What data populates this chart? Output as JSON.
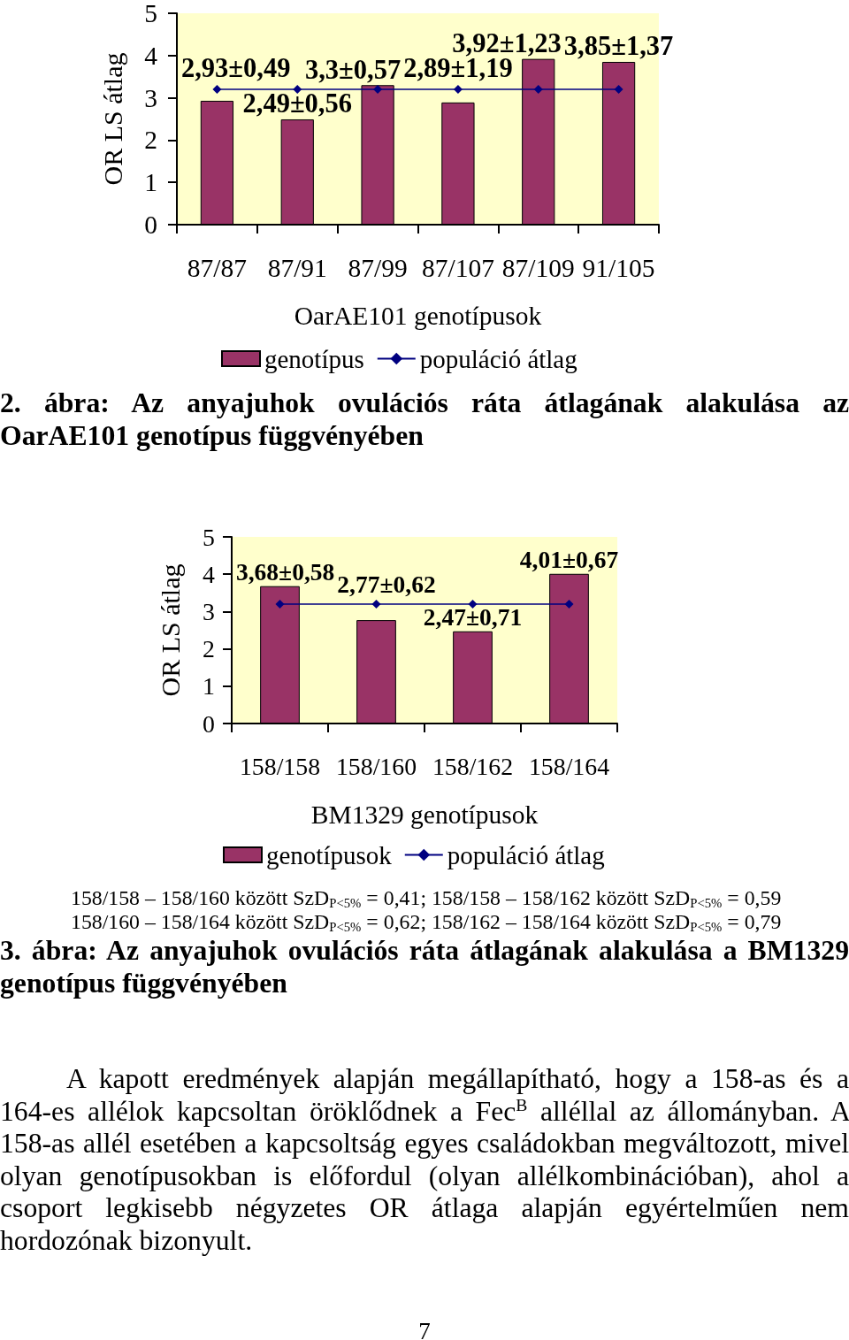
{
  "chart_data": [
    {
      "type": "bar",
      "categories": [
        "87/87",
        "87/91",
        "87/99",
        "87/107",
        "87/109",
        "91/105"
      ],
      "xlabel": "OarAE101 genotípusok",
      "ylabel": "OR LS átlag",
      "ylim": [
        0,
        5
      ],
      "yticks": [
        0,
        1,
        2,
        3,
        4,
        5
      ],
      "grid": false,
      "legend": "bottom",
      "marker": "diamond",
      "series": [
        {
          "name": "genotípus",
          "color": "#993366",
          "values": [
            2.93,
            2.49,
            3.3,
            2.89,
            3.92,
            3.85
          ],
          "value_labels": [
            "2,93±0,49",
            "2,49±0,56",
            "3,3±0,57",
            "2,89±1,19",
            "3,92±1,23",
            "3,85±1,37"
          ]
        },
        {
          "name": "populáció átlag",
          "type": "line",
          "color": "#000080",
          "values": [
            3.2,
            3.2,
            3.2,
            3.2,
            3.2,
            3.2
          ]
        }
      ],
      "annotations": [
        "2. ábra: Az anyajuhok ovulációs ráta átlagának alakulása az OarAE101 genotípus függvényében"
      ]
    },
    {
      "type": "bar",
      "categories": [
        "158/158",
        "158/160",
        "158/162",
        "158/164"
      ],
      "xlabel": "BM1329 genotípusok",
      "ylabel": "OR LS átlag",
      "ylim": [
        0,
        5
      ],
      "yticks": [
        0,
        1,
        2,
        3,
        4,
        5
      ],
      "grid": false,
      "legend": "bottom",
      "marker": "diamond",
      "series": [
        {
          "name": "genotípusok",
          "color": "#993366",
          "values": [
            3.68,
            2.77,
            2.47,
            4.01
          ],
          "value_labels": [
            "3,68±0,58",
            "2,77±0,62",
            "2,47±0,71",
            "4,01±0,67"
          ]
        },
        {
          "name": "populáció átlag",
          "type": "line",
          "color": "#000080",
          "values": [
            3.2,
            3.2,
            3.2,
            3.2
          ]
        }
      ],
      "annotations": [
        "158/158 – 158/160 között SzD$_{P<5%}$ = 0,41; 158/158 – 158/162 között SzD$_{P<5%}$ = 0,59",
        "158/160 – 158/164 között SzD$_{P<5%}$ = 0,62; 158/162 – 158/164 között SzD$_{P<5%}$ = 0,79",
        "3. ábra: Az anyajuhok ovulációs ráta átlagának alakulása a BM1329 genotípus függvényében",
        "A kapott eredmények alapján megállapítható, hogy a 158-as és a 164-es allélok kapcsoltan öröklődnek a Fec$^{B}$ alléllal az állományban. A 158-as allél esetében a kapcsoltság egyes családokban megváltozott, mivel olyan genotípusokban is előfordul (olyan allélkombinációban), ahol a csoport legkisebb négyzetes OR átlaga alapján egyértelműen nem hordozónak bizonyult.",
        "7"
      ]
    }
  ]
}
